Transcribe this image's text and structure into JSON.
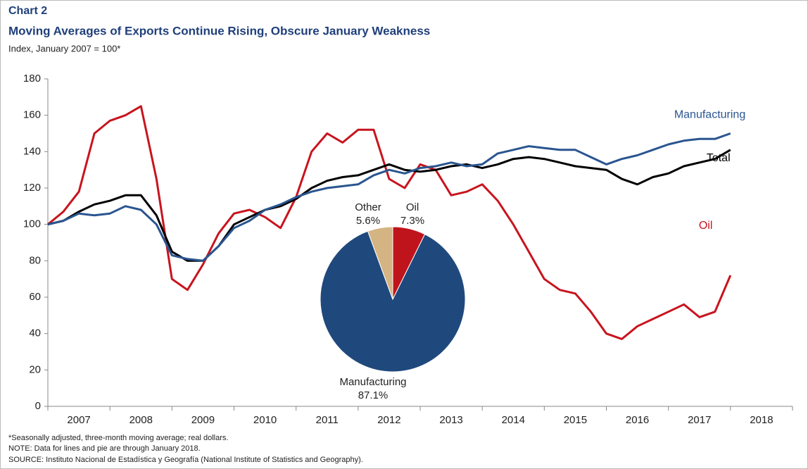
{
  "header": {
    "label": "Chart 2",
    "title": "Moving Averages of Exports Continue Rising, Obscure January Weakness",
    "subtitle": "Index, January 2007 = 100*"
  },
  "footer": [
    "*Seasonally adjusted, three-month moving average;  real dollars.",
    "NOTE: Data for lines and pie are through January 2018.",
    "SOURCE: Instituto Nacional de Estadística y Geografía  (National Institute of Statistics and Geography)."
  ],
  "chart_data": [
    {
      "type": "line",
      "x": [
        2007,
        2007.25,
        2007.5,
        2007.75,
        2008,
        2008.25,
        2008.5,
        2008.75,
        2009,
        2009.25,
        2009.5,
        2009.75,
        2010,
        2010.25,
        2010.5,
        2010.75,
        2011,
        2011.25,
        2011.5,
        2011.75,
        2012,
        2012.25,
        2012.5,
        2012.75,
        2013,
        2013.25,
        2013.5,
        2013.75,
        2014,
        2014.25,
        2014.5,
        2014.75,
        2015,
        2015.25,
        2015.5,
        2015.75,
        2016,
        2016.25,
        2016.5,
        2016.75,
        2017,
        2017.25,
        2017.5,
        2017.75,
        2018
      ],
      "series": [
        {
          "name": "Manufacturing",
          "color": "#2a5590",
          "values": [
            100,
            102,
            106,
            105,
            106,
            110,
            108,
            100,
            83,
            81,
            80,
            88,
            98,
            102,
            108,
            111,
            115,
            118,
            120,
            121,
            122,
            127,
            130,
            128,
            131,
            132,
            134,
            132,
            133,
            139,
            141,
            143,
            142,
            141,
            141,
            137,
            133,
            136,
            138,
            141,
            144,
            146,
            147,
            147,
            150
          ]
        },
        {
          "name": "Total",
          "color": "#000000",
          "values": [
            100,
            102,
            107,
            111,
            113,
            116,
            116,
            105,
            85,
            80,
            80,
            88,
            100,
            104,
            108,
            110,
            114,
            120,
            124,
            126,
            127,
            130,
            133,
            130,
            129,
            130,
            132,
            133,
            131,
            133,
            136,
            137,
            136,
            134,
            132,
            131,
            130,
            125,
            122,
            126,
            128,
            132,
            134,
            136,
            141
          ]
        },
        {
          "name": "Oil",
          "color": "#c8141e",
          "values": [
            100,
            107,
            118,
            150,
            157,
            160,
            165,
            125,
            70,
            64,
            78,
            95,
            106,
            108,
            104,
            98,
            115,
            140,
            150,
            145,
            152,
            152,
            125,
            120,
            133,
            130,
            116,
            118,
            122,
            113,
            100,
            85,
            70,
            64,
            62,
            52,
            40,
            37,
            44,
            48,
            52,
            56,
            49,
            52,
            72
          ]
        }
      ],
      "xlim": [
        2007,
        2019
      ],
      "xticks": [
        2007,
        2008,
        2009,
        2010,
        2011,
        2012,
        2013,
        2014,
        2015,
        2016,
        2017,
        2018
      ],
      "ylim": [
        0,
        180
      ],
      "yticks": [
        0,
        20,
        40,
        60,
        80,
        100,
        120,
        140,
        160,
        180
      ]
    },
    {
      "type": "pie",
      "categories": [
        "Manufacturing",
        "Oil",
        "Other"
      ],
      "values": [
        87.1,
        7.3,
        5.6
      ],
      "value_labels": [
        "87.1%",
        "7.3%",
        "5.6%"
      ],
      "colors": [
        "#1f497d",
        "#c0141c",
        "#d4b483"
      ]
    }
  ]
}
